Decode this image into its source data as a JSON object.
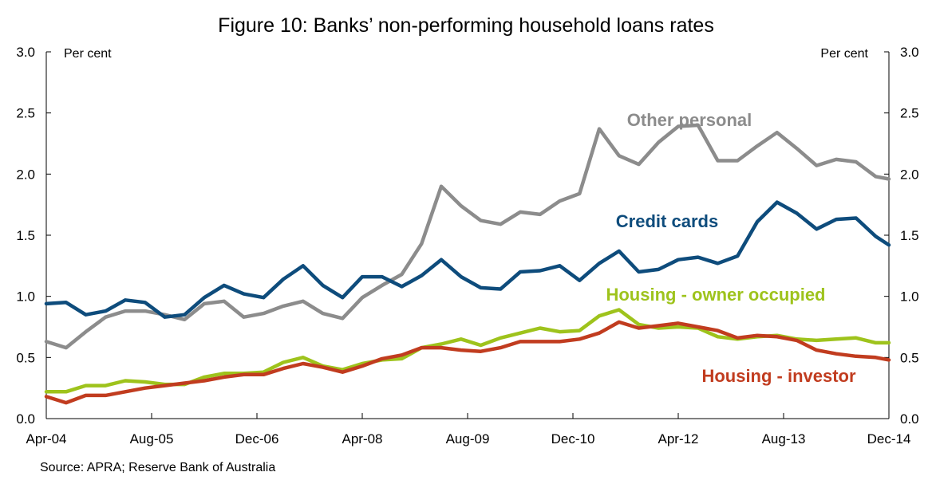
{
  "chart_data": {
    "type": "line",
    "title": "Figure 10: Banks’ non-performing household loans rates",
    "unit_left": "Per cent",
    "unit_right": "Per cent",
    "source": "Source: APRA; Reserve Bank of Australia",
    "ylim": [
      0,
      3
    ],
    "yticks": [
      "0.0",
      "0.5",
      "1.0",
      "1.5",
      "2.0",
      "2.5",
      "3.0"
    ],
    "x_dates": [
      "2004-04",
      "2004-07",
      "2004-10",
      "2005-01",
      "2005-04",
      "2005-07",
      "2005-10",
      "2006-01",
      "2006-04",
      "2006-07",
      "2006-10",
      "2007-01",
      "2007-04",
      "2007-07",
      "2007-10",
      "2008-01",
      "2008-04",
      "2008-07",
      "2008-10",
      "2009-01",
      "2009-04",
      "2009-07",
      "2009-10",
      "2010-01",
      "2010-04",
      "2010-07",
      "2010-10",
      "2011-01",
      "2011-04",
      "2011-07",
      "2011-10",
      "2012-01",
      "2012-04",
      "2012-07",
      "2012-10",
      "2013-01",
      "2013-04",
      "2013-07",
      "2013-10",
      "2014-01",
      "2014-04",
      "2014-07",
      "2014-10",
      "2014-12"
    ],
    "xticks": [
      {
        "date": "2004-04",
        "label": "Apr-04"
      },
      {
        "date": "2005-08",
        "label": "Aug-05"
      },
      {
        "date": "2006-12",
        "label": "Dec-06"
      },
      {
        "date": "2008-04",
        "label": "Apr-08"
      },
      {
        "date": "2009-08",
        "label": "Aug-09"
      },
      {
        "date": "2010-12",
        "label": "Dec-10"
      },
      {
        "date": "2012-04",
        "label": "Apr-12"
      },
      {
        "date": "2013-08",
        "label": "Aug-13"
      },
      {
        "date": "2014-12",
        "label": "Dec-14"
      }
    ],
    "series": [
      {
        "name": "Other personal",
        "color": "#8c8c8c",
        "values": [
          0.63,
          0.58,
          0.71,
          0.83,
          0.88,
          0.88,
          0.85,
          0.81,
          0.94,
          0.96,
          0.83,
          0.86,
          0.92,
          0.96,
          0.86,
          0.82,
          0.99,
          1.09,
          1.18,
          1.43,
          1.9,
          1.74,
          1.62,
          1.59,
          1.69,
          1.67,
          1.78,
          1.84,
          2.37,
          2.15,
          2.08,
          2.26,
          2.39,
          2.4,
          2.11,
          2.11,
          2.23,
          2.34,
          2.21,
          2.07,
          2.12,
          2.1,
          1.98,
          1.96
        ]
      },
      {
        "name": "Credit cards",
        "color": "#0e4c7c",
        "values": [
          0.94,
          0.95,
          0.85,
          0.88,
          0.97,
          0.95,
          0.83,
          0.85,
          0.99,
          1.09,
          1.02,
          0.99,
          1.14,
          1.25,
          1.09,
          0.99,
          1.16,
          1.16,
          1.08,
          1.17,
          1.3,
          1.16,
          1.07,
          1.06,
          1.2,
          1.21,
          1.25,
          1.13,
          1.27,
          1.37,
          1.2,
          1.22,
          1.3,
          1.32,
          1.27,
          1.33,
          1.61,
          1.77,
          1.68,
          1.55,
          1.63,
          1.64,
          1.49,
          1.42
        ]
      },
      {
        "name": "Housing - owner occupied",
        "color": "#9ec31c",
        "values": [
          0.22,
          0.22,
          0.27,
          0.27,
          0.31,
          0.3,
          0.28,
          0.28,
          0.34,
          0.37,
          0.37,
          0.38,
          0.46,
          0.5,
          0.43,
          0.4,
          0.45,
          0.48,
          0.49,
          0.58,
          0.61,
          0.65,
          0.6,
          0.66,
          0.7,
          0.74,
          0.71,
          0.72,
          0.84,
          0.89,
          0.77,
          0.74,
          0.75,
          0.74,
          0.67,
          0.65,
          0.67,
          0.68,
          0.65,
          0.64,
          0.65,
          0.66,
          0.62,
          0.62
        ]
      },
      {
        "name": "Housing - investor",
        "color": "#c13c1f",
        "values": [
          0.18,
          0.13,
          0.19,
          0.19,
          0.22,
          0.25,
          0.27,
          0.29,
          0.31,
          0.34,
          0.36,
          0.36,
          0.41,
          0.45,
          0.42,
          0.38,
          0.43,
          0.49,
          0.52,
          0.58,
          0.58,
          0.56,
          0.55,
          0.58,
          0.63,
          0.63,
          0.63,
          0.65,
          0.7,
          0.79,
          0.74,
          0.76,
          0.78,
          0.75,
          0.72,
          0.66,
          0.68,
          0.67,
          0.64,
          0.56,
          0.53,
          0.51,
          0.5,
          0.48
        ]
      }
    ]
  }
}
